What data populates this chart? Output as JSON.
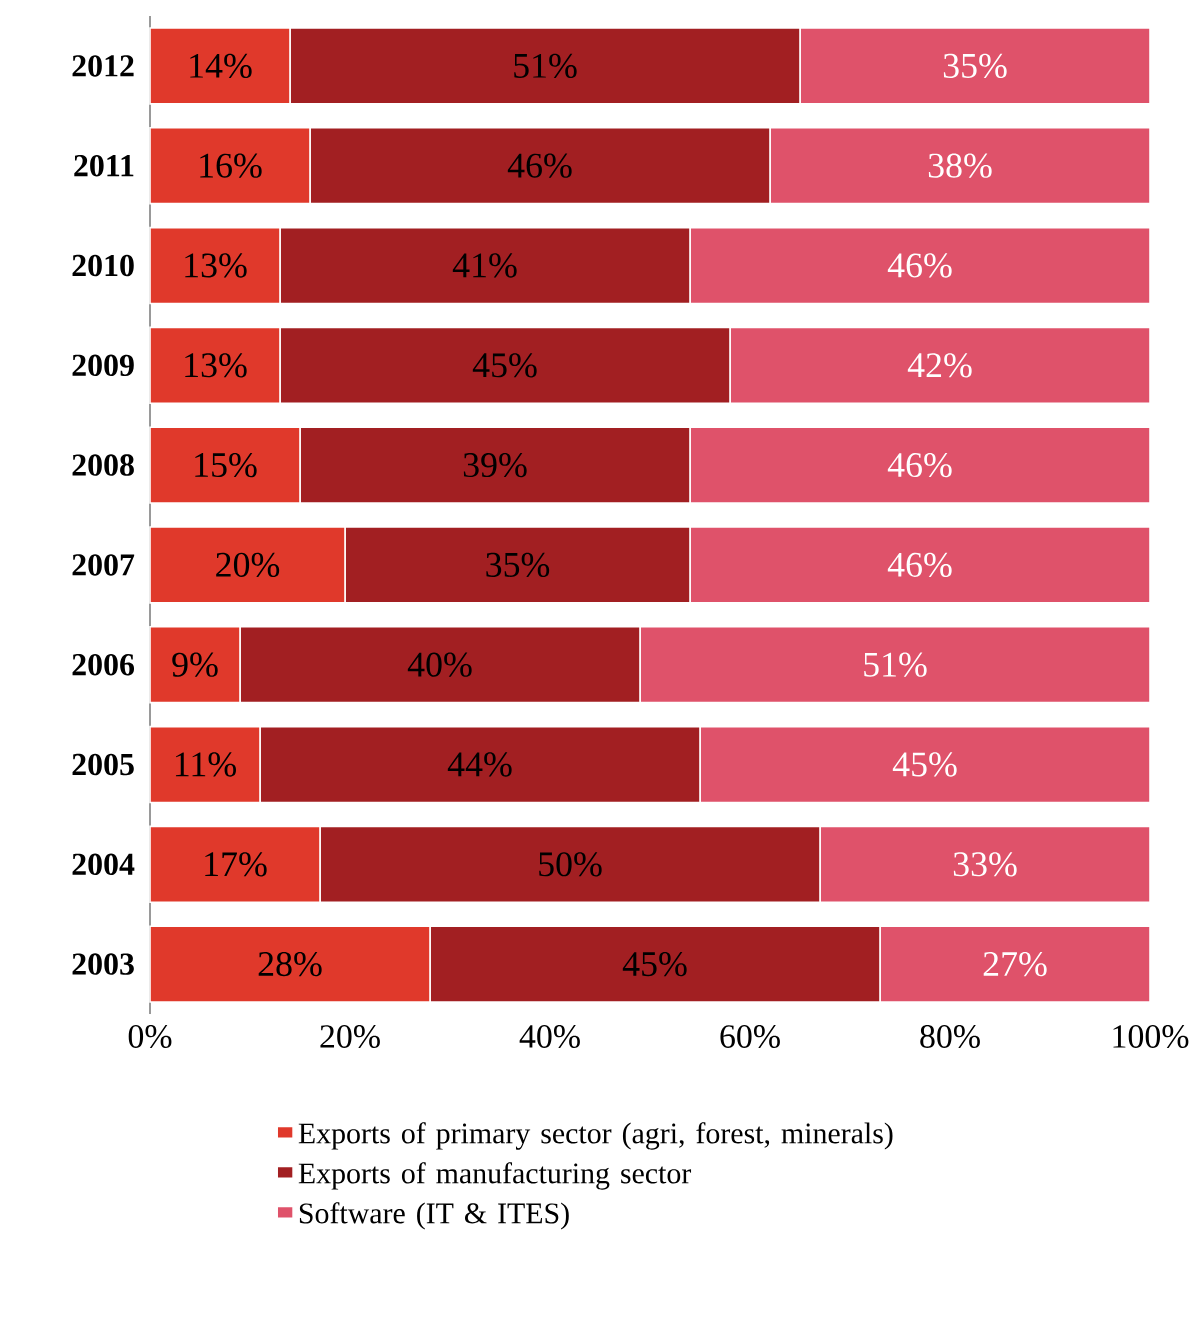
{
  "chart_data": {
    "type": "bar",
    "orientation": "horizontal",
    "stacked": true,
    "categories": [
      "2012",
      "2011",
      "2010",
      "2009",
      "2008",
      "2007",
      "2006",
      "2005",
      "2004",
      "2003"
    ],
    "series": [
      {
        "name": "Exports of primary sector (agri, forest, minerals)",
        "color": "#e0392b",
        "values": [
          14,
          16,
          13,
          13,
          15,
          19.5,
          9,
          11,
          17,
          28
        ],
        "value_labels": [
          "14%",
          "16%",
          "13%",
          "13%",
          "15%",
          "20%",
          "9%",
          "11%",
          "17%",
          "28%"
        ]
      },
      {
        "name": "Exports of manufacturing sector",
        "color": "#a21f22",
        "values": [
          51,
          46,
          41,
          45,
          39,
          34.5,
          40,
          44,
          50,
          45
        ],
        "value_labels": [
          "51%",
          "46%",
          "41%",
          "45%",
          "39%",
          "35%",
          "40%",
          "44%",
          "50%",
          "45%"
        ]
      },
      {
        "name": "Software (IT & ITES)",
        "color": "#df526a",
        "values": [
          35,
          38,
          46,
          42,
          46,
          46,
          51,
          45,
          33,
          27
        ],
        "value_labels": [
          "35%",
          "38%",
          "46%",
          "42%",
          "46%",
          "46%",
          "51%",
          "45%",
          "33%",
          "27%"
        ]
      }
    ],
    "xlim": [
      0,
      100
    ],
    "xticks": [
      {
        "value": 0,
        "label": "0%"
      },
      {
        "value": 20,
        "label": "20%"
      },
      {
        "value": 40,
        "label": "40%"
      },
      {
        "value": 60,
        "label": "60%"
      },
      {
        "value": 80,
        "label": "80%"
      },
      {
        "value": 100,
        "label": "100%"
      }
    ],
    "legend": "bottom"
  }
}
